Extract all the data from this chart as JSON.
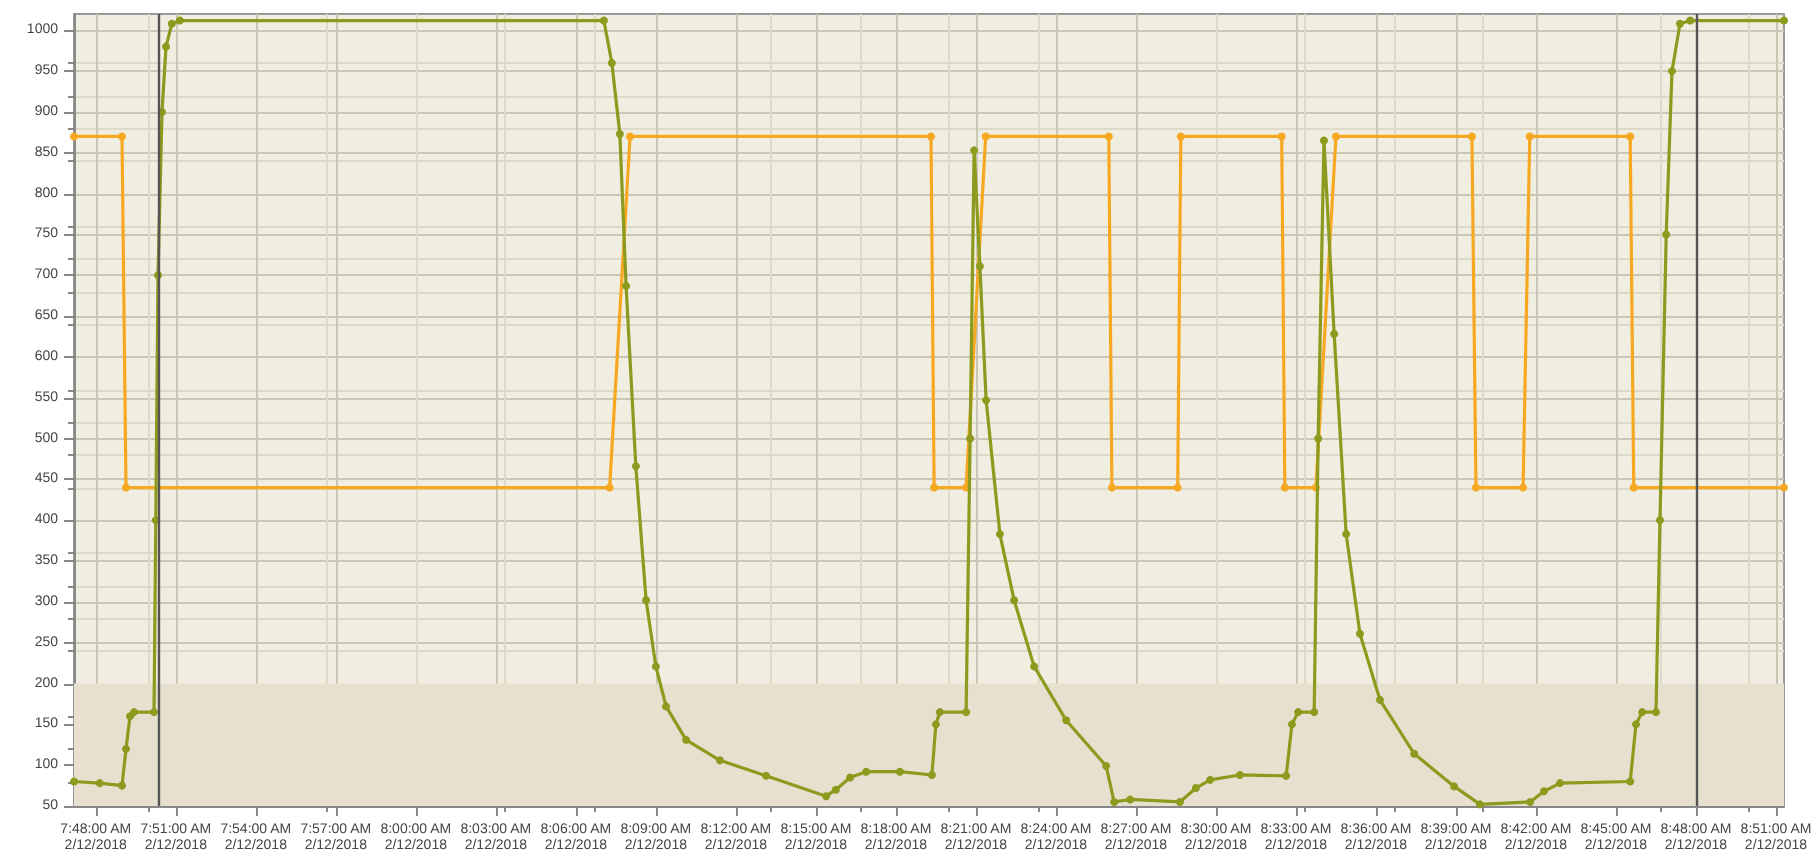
{
  "chart_data": {
    "type": "line",
    "xlim": [
      "2018-02-12T07:47:11",
      "2018-02-12T08:51:18"
    ],
    "ylim": [
      50,
      1020
    ],
    "xticks": [
      {
        "value": "2018-02-12T07:48",
        "label": "7:48:00 AM\n2/12/2018"
      },
      {
        "value": "2018-02-12T07:51",
        "label": "7:51:00 AM\n2/12/2018"
      },
      {
        "value": "2018-02-12T07:54",
        "label": "7:54:00 AM\n2/12/2018"
      },
      {
        "value": "2018-02-12T07:57",
        "label": "7:57:00 AM\n2/12/2018"
      },
      {
        "value": "2018-02-12T08:00",
        "label": "8:00:00 AM\n2/12/2018"
      },
      {
        "value": "2018-02-12T08:03",
        "label": "8:03:00 AM\n2/12/2018"
      },
      {
        "value": "2018-02-12T08:06",
        "label": "8:06:00 AM\n2/12/2018"
      },
      {
        "value": "2018-02-12T08:09",
        "label": "8:09:00 AM\n2/12/2018"
      },
      {
        "value": "2018-02-12T08:12",
        "label": "8:12:00 AM\n2/12/2018"
      },
      {
        "value": "2018-02-12T08:15",
        "label": "8:15:00 AM\n2/12/2018"
      },
      {
        "value": "2018-02-12T08:18",
        "label": "8:18:00 AM\n2/12/2018"
      },
      {
        "value": "2018-02-12T08:21",
        "label": "8:21:00 AM\n2/12/2018"
      },
      {
        "value": "2018-02-12T08:24",
        "label": "8:24:00 AM\n2/12/2018"
      },
      {
        "value": "2018-02-12T08:27",
        "label": "8:27:00 AM\n2/12/2018"
      },
      {
        "value": "2018-02-12T08:30",
        "label": "8:30:00 AM\n2/12/2018"
      },
      {
        "value": "2018-02-12T08:33",
        "label": "8:33:00 AM\n2/12/2018"
      },
      {
        "value": "2018-02-12T08:36",
        "label": "8:36:00 AM\n2/12/2018"
      },
      {
        "value": "2018-02-12T08:39",
        "label": "8:39:00 AM\n2/12/2018"
      },
      {
        "value": "2018-02-12T08:42",
        "label": "8:42:00 AM\n2/12/2018"
      },
      {
        "value": "2018-02-12T08:45",
        "label": "8:45:00 AM\n2/12/2018"
      },
      {
        "value": "2018-02-12T08:48",
        "label": "8:48:00 AM\n2/12/2018"
      },
      {
        "value": "2018-02-12T08:51",
        "label": "8:51:00 AM\n2/12/2018"
      }
    ],
    "yticks": [
      50,
      100,
      150,
      200,
      250,
      300,
      350,
      400,
      450,
      500,
      550,
      600,
      650,
      700,
      750,
      800,
      850,
      900,
      950,
      1000
    ],
    "grid": true,
    "marker": "circle",
    "line_style": "solid",
    "bands": [
      {
        "axis": "y",
        "from": 50,
        "to": 200,
        "color": "#e8e0cf"
      }
    ],
    "ref_lines": [
      {
        "axis": "x",
        "value": "2018-02-12T07:50:20",
        "color": "#555555"
      },
      {
        "axis": "x",
        "value": "2018-02-12T08:48",
        "color": "#555555"
      }
    ],
    "series": [
      {
        "color": "#f7a823",
        "x": [
          "2018-02-12T07:47:11",
          "2018-02-12T07:48:59",
          "2018-02-12T07:49:08",
          "2018-02-12T08:07:16",
          "2018-02-12T08:08:02",
          "2018-02-12T08:19:19",
          "2018-02-12T08:19:26",
          "2018-02-12T08:20:38",
          "2018-02-12T08:21:22",
          "2018-02-12T08:25:59",
          "2018-02-12T08:26:06",
          "2018-02-12T08:28:34",
          "2018-02-12T08:28:41",
          "2018-02-12T08:32:28",
          "2018-02-12T08:32:35",
          "2018-02-12T08:33:45",
          "2018-02-12T08:34:30",
          "2018-02-12T08:39:36",
          "2018-02-12T08:39:45",
          "2018-02-12T08:41:31",
          "2018-02-12T08:41:46",
          "2018-02-12T08:45:32",
          "2018-02-12T08:45:40",
          "2018-02-12T08:51:18"
        ],
        "values": [
          870,
          870,
          440,
          440,
          870,
          870,
          440,
          440,
          870,
          870,
          440,
          440,
          870,
          870,
          440,
          440,
          870,
          870,
          440,
          440,
          870,
          870,
          440,
          440
        ]
      },
      {
        "color": "#8c9a1e",
        "x": [
          "2018-02-12T07:47:11",
          "2018-02-12T07:48:09",
          "2018-02-12T07:48:59",
          "2018-02-12T07:49:08",
          "2018-02-12T07:49:17",
          "2018-02-12T07:49:26",
          "2018-02-12T07:50:11",
          "2018-02-12T07:50:15",
          "2018-02-12T07:50:20",
          "2018-02-12T07:50:29",
          "2018-02-12T07:50:38",
          "2018-02-12T07:50:51",
          "2018-02-12T07:51:09",
          "2018-02-12T08:07:03",
          "2018-02-12T08:07:21",
          "2018-02-12T08:07:39",
          "2018-02-12T08:07:53",
          "2018-02-12T08:08:15",
          "2018-02-12T08:08:38",
          "2018-02-12T08:09:00",
          "2018-02-12T08:09:23",
          "2018-02-12T08:10:08",
          "2018-02-12T08:11:24",
          "2018-02-12T08:13:08",
          "2018-02-12T08:15:23",
          "2018-02-12T08:15:45",
          "2018-02-12T08:16:17",
          "2018-02-12T08:16:53",
          "2018-02-12T08:18:09",
          "2018-02-12T08:19:21",
          "2018-02-12T08:19:30",
          "2018-02-12T08:19:39",
          "2018-02-12T08:20:38",
          "2018-02-12T08:20:47",
          "2018-02-12T08:20:56",
          "2018-02-12T08:21:09",
          "2018-02-12T08:21:23",
          "2018-02-12T08:21:54",
          "2018-02-12T08:22:26",
          "2018-02-12T08:23:11",
          "2018-02-12T08:24:23",
          "2018-02-12T08:25:53",
          "2018-02-12T08:26:11",
          "2018-02-12T08:26:47",
          "2018-02-12T08:28:39",
          "2018-02-12T08:29:15",
          "2018-02-12T08:29:47",
          "2018-02-12T08:30:54",
          "2018-02-12T08:32:38",
          "2018-02-12T08:32:51",
          "2018-02-12T08:33:05",
          "2018-02-12T08:33:41",
          "2018-02-12T08:33:50",
          "2018-02-12T08:34:03",
          "2018-02-12T08:34:26",
          "2018-02-12T08:34:53",
          "2018-02-12T08:35:24",
          "2018-02-12T08:36:09",
          "2018-02-12T08:37:26",
          "2018-02-12T08:38:56",
          "2018-02-12T08:39:54",
          "2018-02-12T08:41:47",
          "2018-02-12T08:42:18",
          "2018-02-12T08:42:54",
          "2018-02-12T08:45:32",
          "2018-02-12T08:45:45",
          "2018-02-12T08:45:59",
          "2018-02-12T08:46:30",
          "2018-02-12T08:46:39",
          "2018-02-12T08:46:53",
          "2018-02-12T08:47:06",
          "2018-02-12T08:47:24",
          "2018-02-12T08:47:47",
          "2018-02-12T08:51:18"
        ],
        "values": [
          80,
          78,
          75,
          120,
          160,
          165,
          165,
          400,
          700,
          900,
          980,
          1008,
          1012,
          1012,
          960,
          873,
          687,
          466,
          302,
          221,
          172,
          131,
          106,
          87,
          62,
          70,
          85,
          92,
          92,
          88,
          150,
          165,
          165,
          500,
          853,
          711,
          547,
          383,
          302,
          221,
          155,
          99,
          55,
          58,
          55,
          72,
          82,
          88,
          87,
          150,
          165,
          165,
          500,
          865,
          628,
          383,
          261,
          180,
          114,
          74,
          52,
          55,
          68,
          78,
          80,
          150,
          165,
          165,
          400,
          750,
          950,
          1008,
          1012,
          1012
        ]
      }
    ]
  }
}
